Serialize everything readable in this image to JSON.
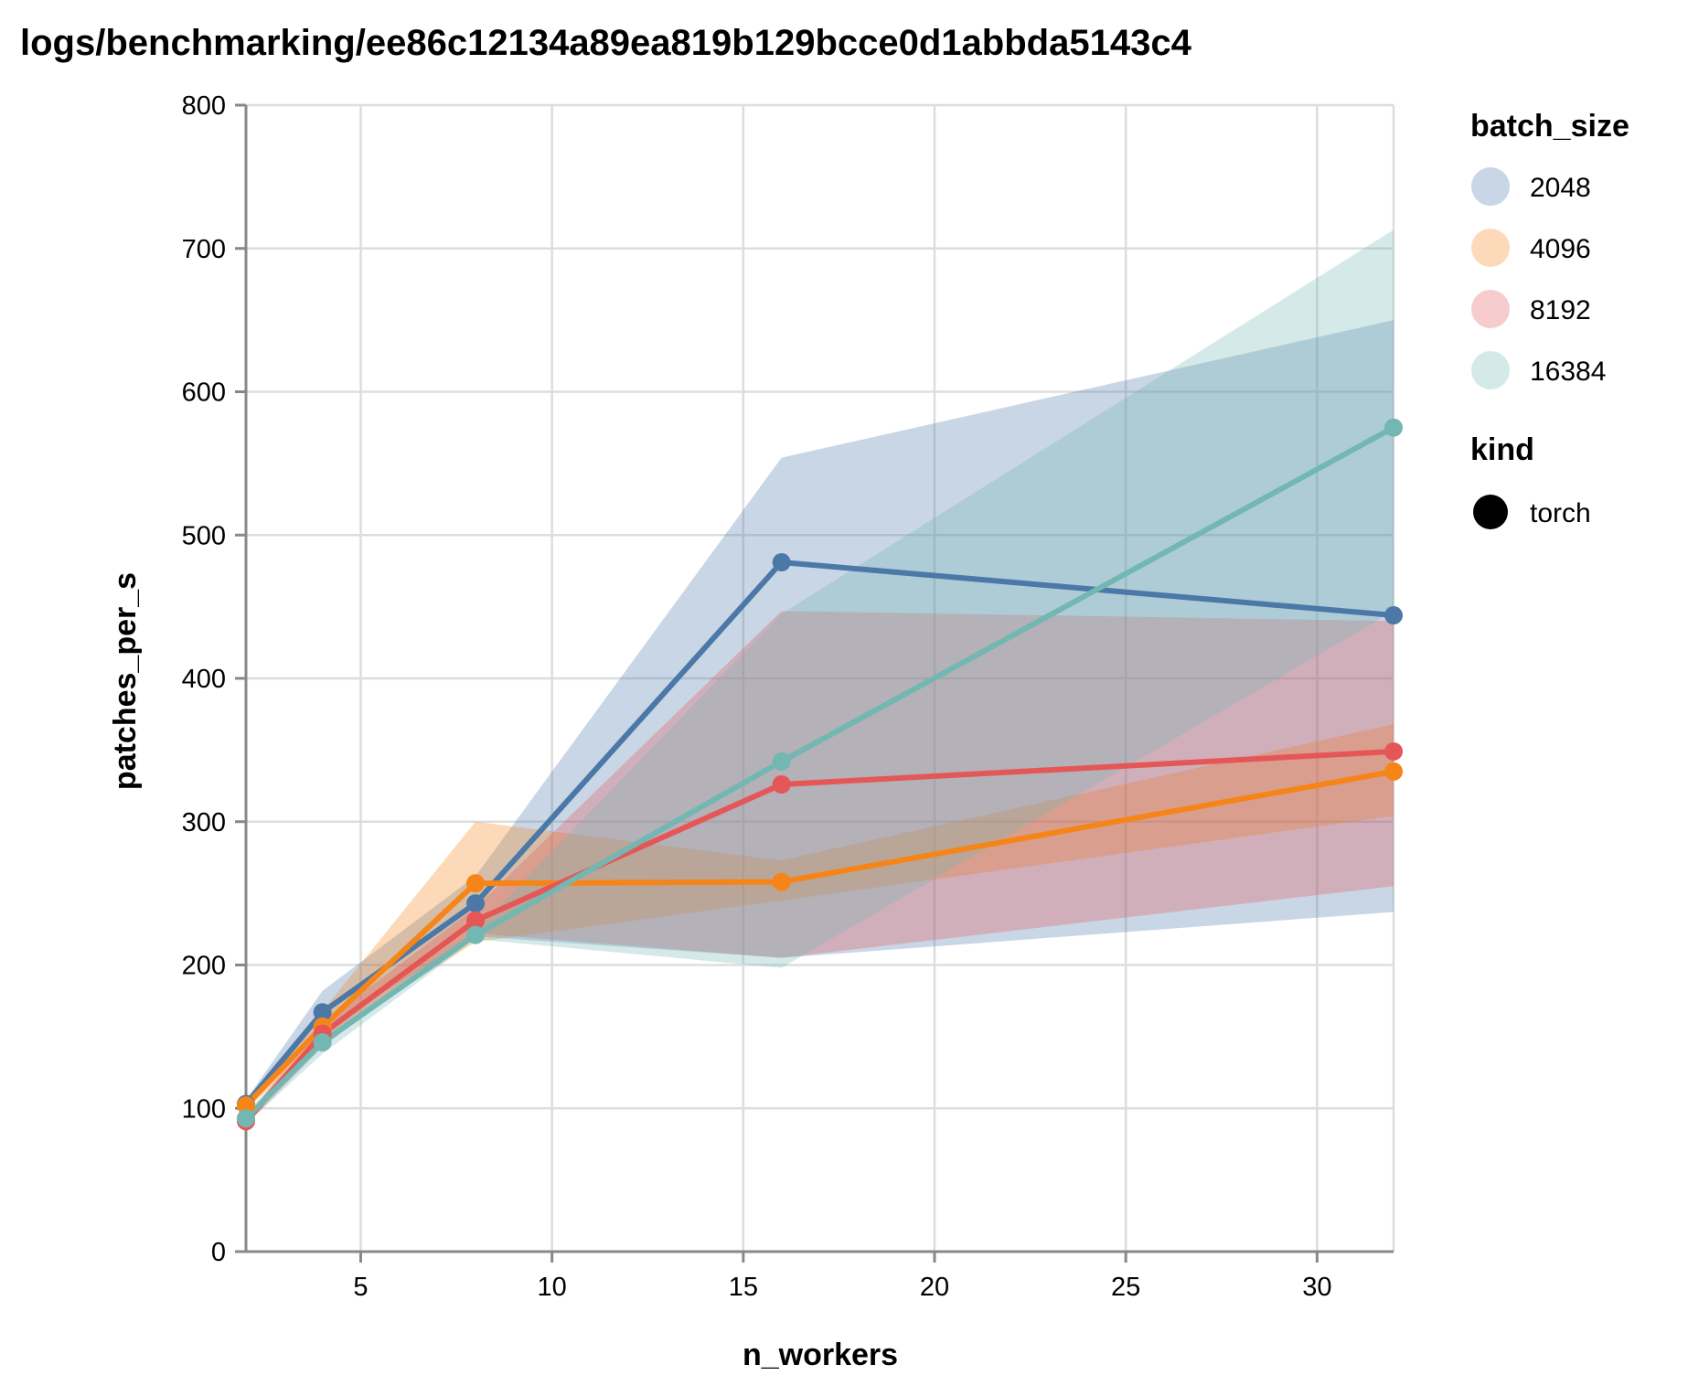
{
  "chart_data": {
    "type": "line",
    "title": "logs/benchmarking/ee86c12134a89ea819b129bcce0d1abbda5143c4",
    "xlabel": "n_workers",
    "ylabel": "patches_per_s",
    "xlim": [
      2,
      32
    ],
    "ylim": [
      0,
      800
    ],
    "xticks": [
      5,
      10,
      15,
      20,
      25,
      30
    ],
    "yticks": [
      0,
      100,
      200,
      300,
      400,
      500,
      600,
      700,
      800
    ],
    "grid": true,
    "legend_position": "right",
    "legend": {
      "color_title": "batch_size",
      "shape_title": "kind",
      "shape_entries": [
        {
          "label": "torch",
          "color": "#000000"
        }
      ]
    },
    "x": [
      2,
      4,
      8,
      16,
      32
    ],
    "series": [
      {
        "name": "2048",
        "color": "#4c78a8",
        "values": [
          103,
          167,
          243,
          481,
          444
        ],
        "band_low": [
          100,
          155,
          220,
          205,
          237
        ],
        "band_high": [
          106,
          182,
          262,
          554,
          650
        ]
      },
      {
        "name": "4096",
        "color": "#f58518",
        "values": [
          102,
          157,
          257,
          258,
          335
        ],
        "band_low": [
          99,
          148,
          216,
          245,
          304
        ],
        "band_high": [
          105,
          168,
          300,
          273,
          368
        ]
      },
      {
        "name": "8192",
        "color": "#e45756",
        "values": [
          91,
          152,
          231,
          326,
          349
        ],
        "band_low": [
          88,
          143,
          222,
          205,
          255
        ],
        "band_high": [
          94,
          160,
          240,
          447,
          440
        ]
      },
      {
        "name": "16384",
        "color": "#72b7b2",
        "values": [
          93,
          146,
          221,
          342,
          575
        ],
        "band_low": [
          89,
          138,
          218,
          198,
          447
        ],
        "band_high": [
          97,
          152,
          224,
          445,
          713
        ]
      }
    ]
  }
}
